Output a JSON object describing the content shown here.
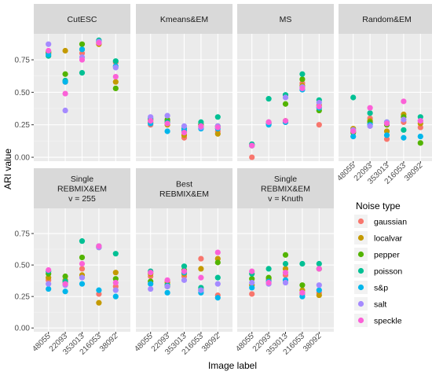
{
  "chart_data": {
    "type": "scatter",
    "x_label": "Image label",
    "y_label": "ARI value",
    "ylim": [
      -0.03,
      0.95
    ],
    "y_ticks": [
      "0.00",
      "0.25",
      "0.50",
      "0.75"
    ],
    "y_tick_values": [
      0,
      0.25,
      0.5,
      0.75
    ],
    "categories": [
      "48055",
      "22093",
      "353013",
      "216053",
      "38092"
    ],
    "grid": true,
    "legend": {
      "title": "Noise type",
      "position": "right",
      "entries": [
        {
          "name": "gaussian",
          "color": "#F8766D"
        },
        {
          "name": "localvar",
          "color": "#C49A00"
        },
        {
          "name": "pepper",
          "color": "#53B400"
        },
        {
          "name": "poisson",
          "color": "#00C094"
        },
        {
          "name": "s&p",
          "color": "#00B6EB"
        },
        {
          "name": "salt",
          "color": "#A58AFF"
        },
        {
          "name": "speckle",
          "color": "#FB61D7"
        }
      ]
    },
    "panels": [
      {
        "title": [
          "CutESC"
        ],
        "points": {
          "gaussian": [
            0.8,
            0.58,
            0.8,
            0.88,
            0.73
          ],
          "localvar": [
            0.8,
            0.82,
            0.83,
            0.87,
            0.58
          ],
          "pepper": [
            0.81,
            0.64,
            0.87,
            0.89,
            0.53
          ],
          "poisson": [
            0.78,
            0.59,
            0.65,
            0.9,
            0.74
          ],
          "s&p": [
            0.79,
            0.58,
            0.83,
            0.89,
            0.7
          ],
          "salt": [
            0.87,
            0.36,
            0.77,
            0.89,
            0.69
          ],
          "speckle": [
            0.82,
            0.49,
            0.75,
            0.88,
            0.62
          ]
        }
      },
      {
        "title": [
          "Kmeans&EM"
        ],
        "points": {
          "gaussian": [
            0.25,
            0.28,
            0.15,
            0.25,
            0.2
          ],
          "localvar": [
            0.27,
            0.25,
            0.17,
            0.24,
            0.18
          ],
          "pepper": [
            0.29,
            0.29,
            0.2,
            0.25,
            0.24
          ],
          "poisson": [
            0.3,
            0.27,
            0.22,
            0.27,
            0.31
          ],
          "s&p": [
            0.26,
            0.2,
            0.21,
            0.22,
            0.22
          ],
          "salt": [
            0.31,
            0.32,
            0.24,
            0.23,
            0.24
          ],
          "speckle": [
            0.28,
            0.26,
            0.19,
            0.24,
            0.23
          ]
        }
      },
      {
        "title": [
          "MS"
        ],
        "points": {
          "gaussian": [
            0.0,
            0.26,
            0.27,
            0.57,
            0.25
          ],
          "localvar": [
            0.09,
            0.27,
            0.28,
            0.55,
            0.4
          ],
          "pepper": [
            0.1,
            0.26,
            0.41,
            0.6,
            0.36
          ],
          "poisson": [
            0.1,
            0.45,
            0.48,
            0.64,
            0.44
          ],
          "s&p": [
            0.09,
            0.25,
            0.27,
            0.52,
            0.38
          ],
          "salt": [
            0.09,
            0.27,
            0.46,
            0.54,
            0.42
          ],
          "speckle": [
            0.09,
            0.27,
            0.28,
            0.53,
            0.39
          ]
        }
      },
      {
        "title": [
          "Random&EM"
        ],
        "points": {
          "gaussian": [
            0.2,
            0.3,
            0.14,
            0.27,
            0.23
          ],
          "localvar": [
            0.22,
            0.28,
            0.2,
            0.33,
            0.26
          ],
          "pepper": [
            0.19,
            0.27,
            0.25,
            0.31,
            0.11
          ],
          "poisson": [
            0.46,
            0.34,
            0.27,
            0.21,
            0.31
          ],
          "s&p": [
            0.16,
            0.25,
            0.17,
            0.15,
            0.16
          ],
          "salt": [
            0.21,
            0.24,
            0.27,
            0.29,
            0.28
          ],
          "speckle": [
            0.2,
            0.38,
            0.26,
            0.43,
            0.28
          ]
        }
      },
      {
        "title": [
          "Single",
          "REBMIX&EM",
          "v = 255"
        ],
        "points": {
          "gaussian": [
            0.38,
            0.36,
            0.47,
            0.27,
            0.33
          ],
          "localvar": [
            0.4,
            0.38,
            0.42,
            0.2,
            0.44
          ],
          "pepper": [
            0.43,
            0.41,
            0.56,
            0.64,
            0.39
          ],
          "poisson": [
            0.45,
            0.37,
            0.69,
            0.65,
            0.59
          ],
          "s&p": [
            0.31,
            0.29,
            0.35,
            0.3,
            0.25
          ],
          "salt": [
            0.35,
            0.34,
            0.4,
            0.64,
            0.3
          ],
          "speckle": [
            0.46,
            0.35,
            0.51,
            0.65,
            0.36
          ]
        }
      },
      {
        "title": [
          "Best",
          "REBMIX&EM"
        ],
        "points": {
          "gaussian": [
            0.41,
            0.37,
            0.41,
            0.55,
            0.26
          ],
          "localvar": [
            0.43,
            0.36,
            0.43,
            0.47,
            0.55
          ],
          "pepper": [
            0.37,
            0.33,
            0.46,
            0.3,
            0.52
          ],
          "poisson": [
            0.45,
            0.34,
            0.49,
            0.32,
            0.4
          ],
          "s&p": [
            0.35,
            0.28,
            0.44,
            0.28,
            0.24
          ],
          "salt": [
            0.31,
            0.33,
            0.38,
            0.3,
            0.35
          ],
          "speckle": [
            0.44,
            0.38,
            0.45,
            0.4,
            0.6
          ]
        }
      },
      {
        "title": [
          "Single",
          "REBMIX&EM",
          "v = Knuth"
        ],
        "points": {
          "gaussian": [
            0.27,
            0.38,
            0.42,
            0.27,
            0.28
          ],
          "localvar": [
            0.34,
            0.39,
            0.47,
            0.3,
            0.26
          ],
          "pepper": [
            0.39,
            0.4,
            0.58,
            0.34,
            0.47
          ],
          "poisson": [
            0.43,
            0.47,
            0.51,
            0.51,
            0.51
          ],
          "s&p": [
            0.32,
            0.37,
            0.38,
            0.25,
            0.3
          ],
          "salt": [
            0.36,
            0.35,
            0.36,
            0.28,
            0.34
          ],
          "speckle": [
            0.45,
            0.36,
            0.44,
            0.28,
            0.47
          ]
        }
      }
    ]
  }
}
